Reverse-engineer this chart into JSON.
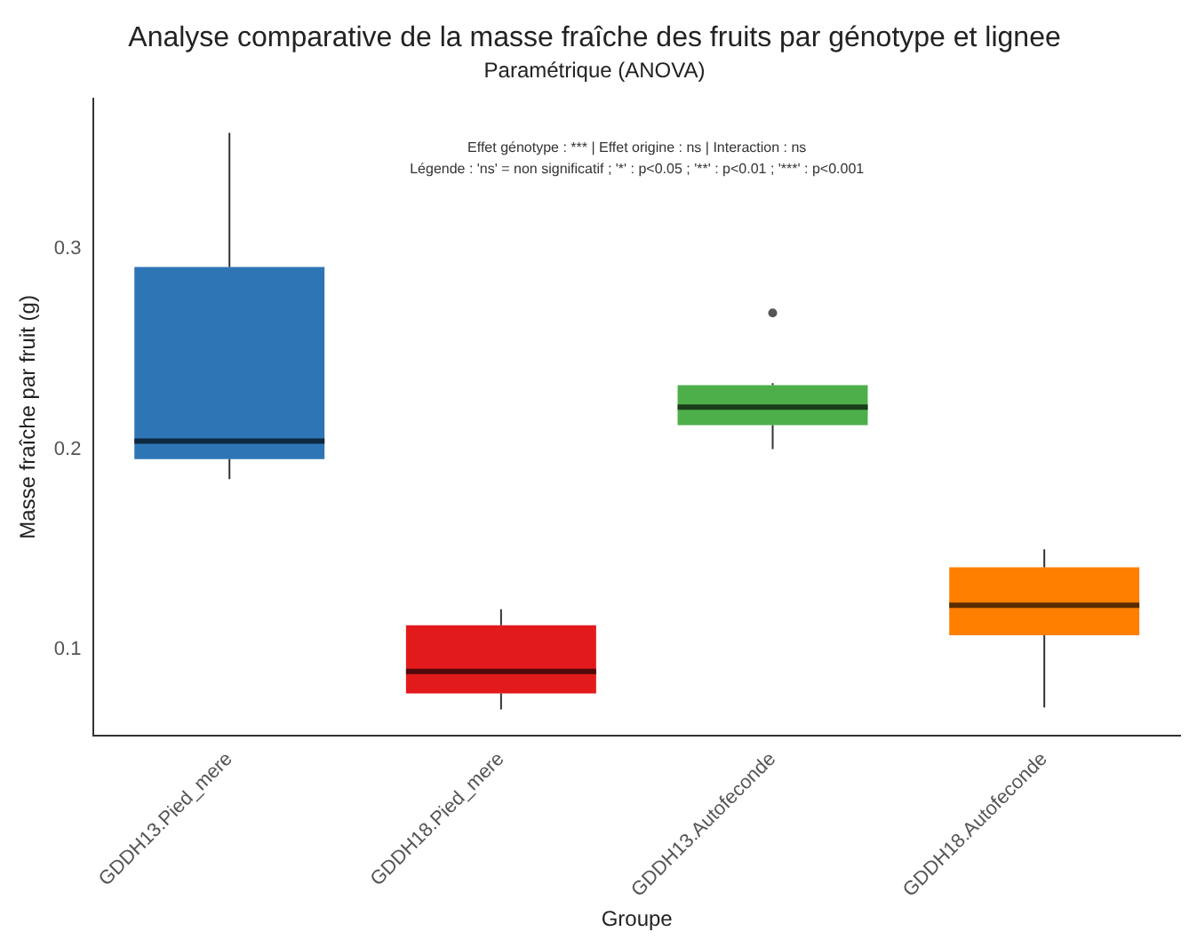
{
  "chart_data": {
    "type": "box",
    "title": "Analyse comparative de la masse fraîche des fruits par génotype et lignee",
    "subtitle": "Paramétrique (ANOVA)",
    "xlabel": "Groupe",
    "ylabel": "Masse fraîche par fruit (g)",
    "annotations": [
      "Effet génotype : *** | Effet origine : ns | Interaction : ns",
      "Légende : 'ns' = non significatif ; '*' : p<0.05 ; '**' : p<0.01 ; '***' : p<0.001"
    ],
    "categories": [
      "GDDH13.Pied_mere",
      "GDDH18.Pied_mere",
      "GDDH13.Autofeconde",
      "GDDH18.Autofeconde"
    ],
    "colors": [
      "#2e75b6",
      "#e31a1c",
      "#4daf4a",
      "#ff7f00"
    ],
    "boxes": [
      {
        "low": 0.185,
        "q1": 0.195,
        "median": 0.204,
        "q3": 0.291,
        "high": 0.358
      },
      {
        "low": 0.07,
        "q1": 0.078,
        "median": 0.089,
        "q3": 0.112,
        "high": 0.12
      },
      {
        "low": 0.2,
        "q1": 0.212,
        "median": 0.221,
        "q3": 0.232,
        "high": 0.233,
        "outliers": [
          0.268
        ]
      },
      {
        "low": 0.071,
        "q1": 0.107,
        "median": 0.122,
        "q3": 0.141,
        "high": 0.15
      }
    ],
    "ylim": [
      0.057,
      0.375
    ],
    "yticks": [
      0.1,
      0.2,
      0.3
    ],
    "grid": false,
    "legend": false
  }
}
